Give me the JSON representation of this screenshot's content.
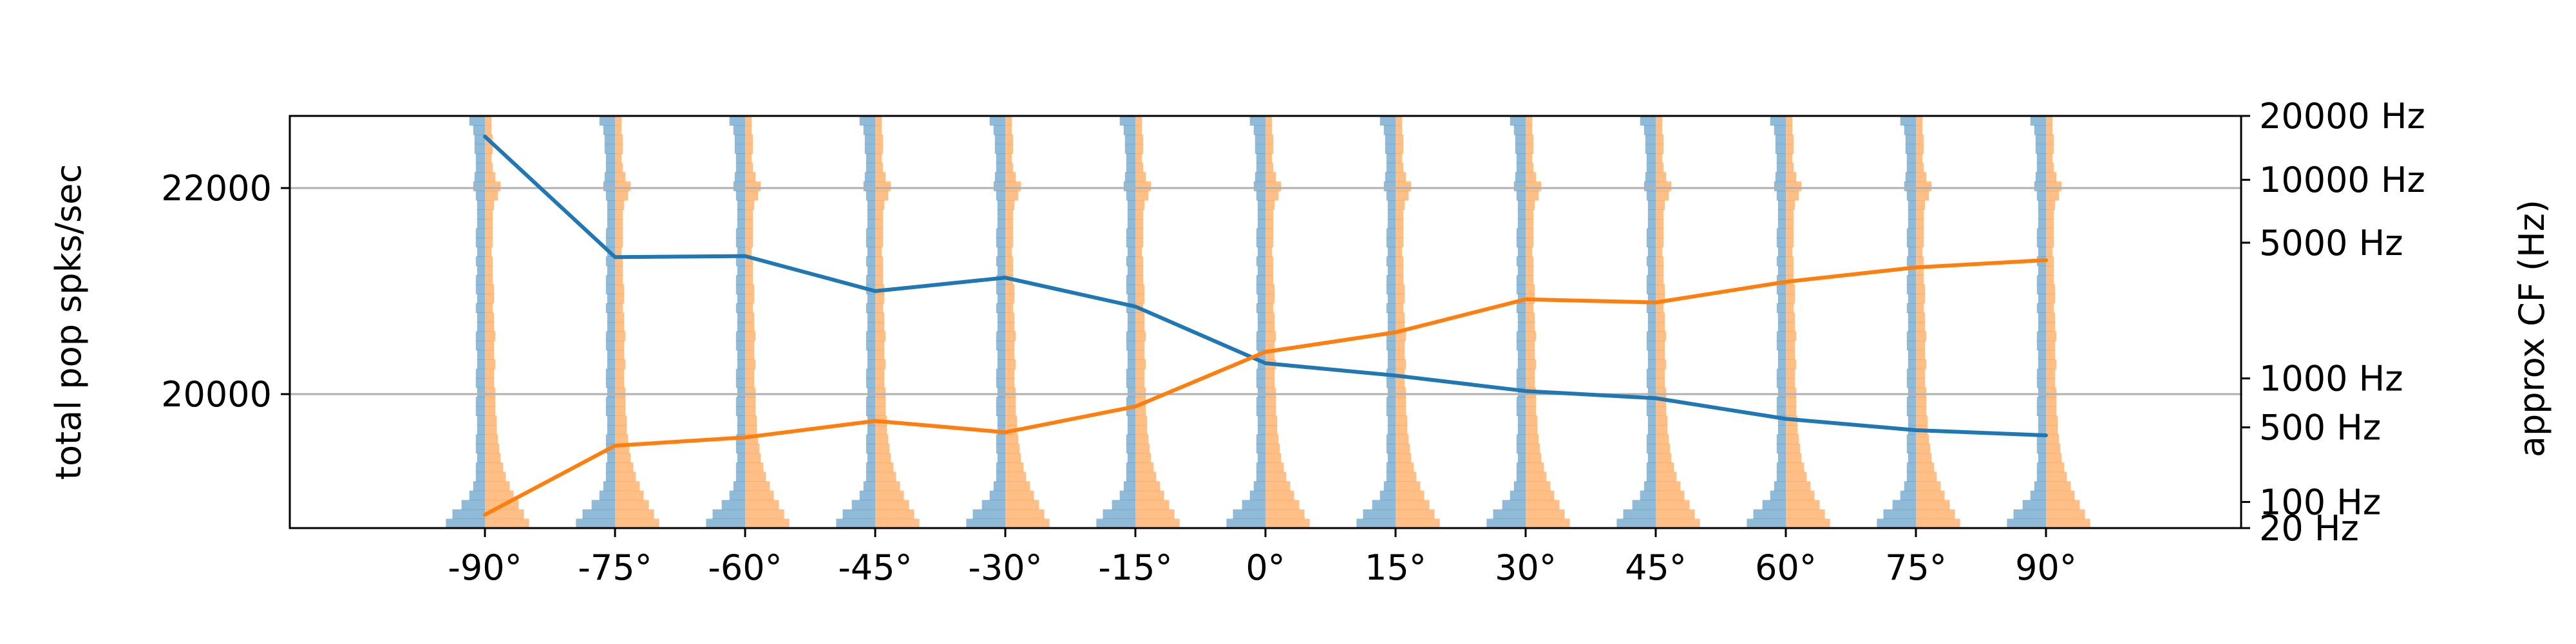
{
  "chart_data": {
    "type": "line",
    "x": [
      -90,
      -75,
      -60,
      -45,
      -30,
      -15,
      0,
      15,
      30,
      45,
      60,
      75,
      90
    ],
    "xtick_labels": [
      "-90°",
      "-75°",
      "-60°",
      "-45°",
      "-30°",
      "-15°",
      "0°",
      "15°",
      "30°",
      "45°",
      "60°",
      "75°",
      "90°"
    ],
    "ylabel": "total pop spks/sec",
    "ylim": [
      18700,
      22700
    ],
    "yticks": [
      20000,
      22000
    ],
    "ytick_labels": [
      "20000",
      "22000"
    ],
    "y2label": "approx CF (Hz)",
    "y2_scale": "erb",
    "y2_ticks": [
      20,
      100,
      500,
      1000,
      5000,
      10000,
      20000
    ],
    "y2_tick_labels": [
      "20 Hz",
      "100 Hz",
      "500 Hz",
      "1000 Hz",
      "5000 Hz",
      "10000 Hz",
      "20000 Hz"
    ],
    "grid": "horizontal",
    "series": [
      {
        "axis": "left",
        "color": "#1f77b4",
        "values": [
          22500,
          21330,
          21340,
          21000,
          21130,
          20850,
          20300,
          20180,
          20030,
          19960,
          19760,
          19650,
          19600
        ]
      },
      {
        "axis": "left",
        "color": "#ff7f0e",
        "values": [
          18830,
          19500,
          19580,
          19740,
          19630,
          19880,
          20410,
          20600,
          20920,
          20890,
          21090,
          21230,
          21300
        ]
      }
    ],
    "distributions": {
      "left_color": "#1f77b4",
      "right_color": "#ff7f0e",
      "alpha": 0.5,
      "note_values_are_relative_widths_top_to_bottom": true,
      "left": [
        0.12,
        0.09,
        0.08,
        0.08,
        0.07,
        0.07,
        0.08,
        0.09,
        0.07,
        0.06,
        0.06,
        0.06,
        0.07,
        0.07,
        0.06,
        0.07,
        0.06,
        0.07,
        0.07,
        0.06,
        0.07,
        0.06,
        0.06,
        0.07,
        0.07,
        0.06,
        0.06,
        0.07,
        0.07,
        0.06,
        0.07,
        0.07,
        0.06,
        0.06,
        0.07,
        0.07,
        0.06,
        0.07,
        0.07,
        0.09,
        0.12,
        0.18,
        0.25,
        0.3
      ],
      "right": [
        0.05,
        0.05,
        0.06,
        0.06,
        0.05,
        0.06,
        0.08,
        0.12,
        0.1,
        0.07,
        0.06,
        0.06,
        0.06,
        0.06,
        0.05,
        0.06,
        0.06,
        0.06,
        0.07,
        0.07,
        0.06,
        0.07,
        0.07,
        0.08,
        0.07,
        0.07,
        0.08,
        0.07,
        0.07,
        0.08,
        0.08,
        0.08,
        0.09,
        0.09,
        0.1,
        0.11,
        0.12,
        0.14,
        0.16,
        0.19,
        0.22,
        0.26,
        0.3,
        0.34
      ]
    }
  }
}
